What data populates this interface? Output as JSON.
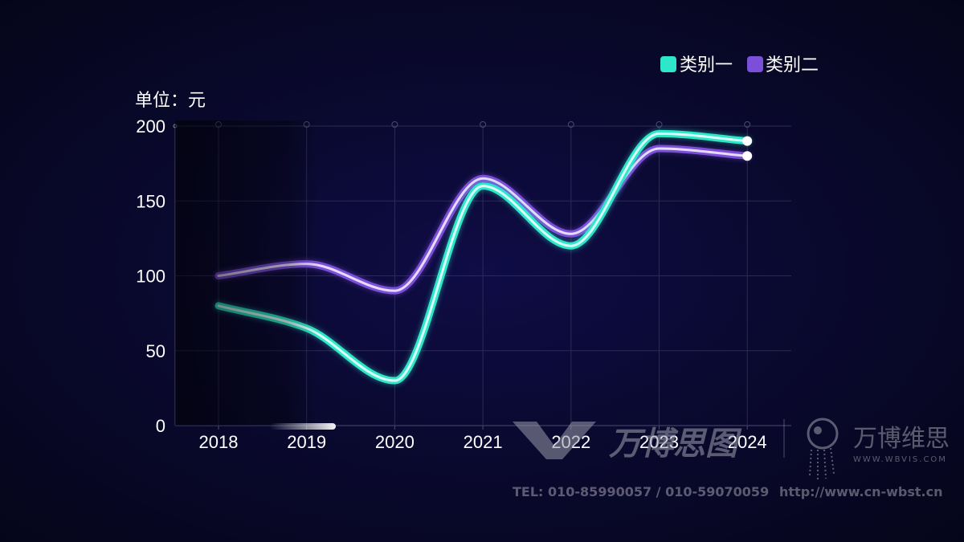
{
  "chart_data": {
    "type": "line",
    "smooth": true,
    "unit_label": "单位：元",
    "categories": [
      "2018",
      "2019",
      "2020",
      "2021",
      "2022",
      "2023",
      "2024"
    ],
    "series": [
      {
        "name": "类别一",
        "color": "#2ee6c9",
        "values": [
          80,
          65,
          30,
          160,
          120,
          195,
          190
        ]
      },
      {
        "name": "类别二",
        "color": "#7c4fd8",
        "values": [
          100,
          108,
          90,
          165,
          128,
          185,
          180
        ]
      }
    ],
    "ylim": [
      0,
      200
    ],
    "yticks": [
      0,
      50,
      100,
      150,
      200
    ],
    "grid": true,
    "legend_position": "top-right"
  },
  "watermark": {
    "logo_text": "万博思图",
    "brand_text": "万博维思",
    "brand_url": "WWW.WBVIS.COM",
    "tel": "TEL: 010-85990057 / 010-59070059",
    "website": "http://www.cn-wbst.cn"
  }
}
